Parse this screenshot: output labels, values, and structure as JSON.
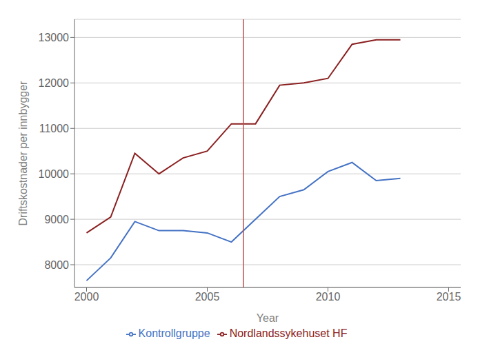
{
  "chart_data": {
    "type": "line",
    "x": [
      2000,
      2001,
      2002,
      2003,
      2004,
      2005,
      2006,
      2007,
      2008,
      2009,
      2010,
      2011,
      2012,
      2013
    ],
    "series": [
      {
        "name": "Kontrollgruppe",
        "color": "#4472c4",
        "values": [
          7650,
          8150,
          8950,
          8750,
          8750,
          8700,
          8500,
          9000,
          9500,
          9650,
          10050,
          10250,
          9850,
          9900
        ]
      },
      {
        "name": "Nordlandssykehuset HF",
        "color": "#8b2020",
        "values": [
          8700,
          9050,
          10450,
          10000,
          10350,
          10500,
          11100,
          11100,
          11950,
          12000,
          12100,
          12850,
          12950,
          12950
        ]
      }
    ],
    "xlabel": "Year",
    "ylabel": "Driftskostnader per innbygger",
    "xlim": [
      1999.5,
      2015.5
    ],
    "xticks": [
      2000,
      2005,
      2010,
      2015
    ],
    "ylim": [
      7500,
      13400
    ],
    "yticks": [
      8000,
      9000,
      10000,
      11000,
      12000,
      13000
    ],
    "grid": true,
    "legend": "bottom",
    "vlines": [
      {
        "x": 2006.5,
        "color": "#c0504d"
      }
    ]
  }
}
